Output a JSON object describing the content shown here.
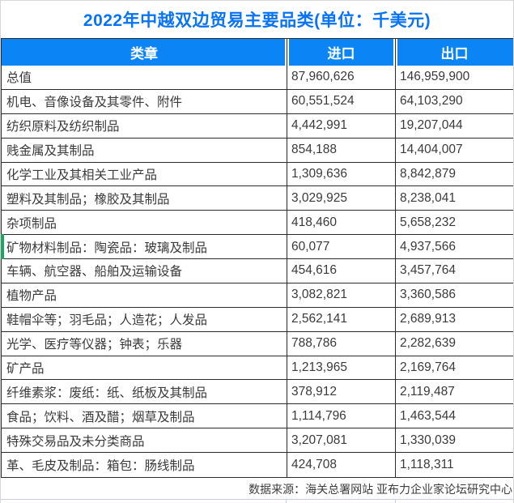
{
  "title": "2022年中越双边贸易主要品类(单位：千美元)",
  "footer": {
    "source": "数据来源：海关总署网站 亚布力企业家论坛研究中心"
  },
  "colors": {
    "accent_blue": "#0b84f5",
    "title_blue": "#0973f5",
    "header_text": "#ffffff",
    "border_dark": "#2b2b2b",
    "body_text": "#3a3a3a",
    "green_marker": "#21a366",
    "faint_line": "#c4cddc"
  },
  "chart_data": {
    "type": "table",
    "title": "2022年中越双边贸易主要品类(单位：千美元)",
    "unit": "千美元",
    "columns": [
      "类章",
      "进口",
      "出口"
    ],
    "rows": [
      {
        "category": "总值",
        "import_value": "87,960,626",
        "export_value": "146,959,900"
      },
      {
        "category": "机电、音像设备及其零件、附件",
        "import_value": "60,551,524",
        "export_value": "64,103,290"
      },
      {
        "category": "纺织原料及纺织制品",
        "import_value": "4,442,991",
        "export_value": "19,207,044"
      },
      {
        "category": "贱金属及其制品",
        "import_value": "854,188",
        "export_value": "14,404,007"
      },
      {
        "category": "化学工业及其相关工业产品",
        "import_value": "1,309,636",
        "export_value": "8,842,879"
      },
      {
        "category": "塑料及其制品；橡胶及其制品",
        "import_value": "3,029,925",
        "export_value": "8,238,041"
      },
      {
        "category": "杂项制品",
        "import_value": "418,460",
        "export_value": "5,658,232"
      },
      {
        "category": "矿物材料制品：陶瓷品：玻璃及制品",
        "import_value": "60,077",
        "export_value": "4,937,566"
      },
      {
        "category": "车辆、航空器、船舶及运输设备",
        "import_value": "454,616",
        "export_value": "3,457,764"
      },
      {
        "category": "植物产品",
        "import_value": "3,082,821",
        "export_value": "3,360,586"
      },
      {
        "category": "鞋帽伞等；羽毛品；人造花；人发品",
        "import_value": "2,562,141",
        "export_value": "2,689,913"
      },
      {
        "category": "光学、医疗等仪器；钟表；乐器",
        "import_value": "788,786",
        "export_value": "2,282,639"
      },
      {
        "category": "矿产品",
        "import_value": "1,213,965",
        "export_value": "2,169,764"
      },
      {
        "category": "纤维素浆：废纸：纸、纸板及其制品",
        "import_value": "378,912",
        "export_value": "2,119,487"
      },
      {
        "category": "食品；饮料、酒及醋；烟草及制品",
        "import_value": "1,114,796",
        "export_value": "1,463,544"
      },
      {
        "category": "特殊交易品及未分类商品",
        "import_value": "3,207,081",
        "export_value": "1,330,039"
      },
      {
        "category": "革、毛皮及制品：箱包：肠线制品",
        "import_value": "424,708",
        "export_value": "1,118,311"
      }
    ],
    "green_marker_row_index": 7,
    "source_note": "数据来源：海关总署网站 亚布力企业家论坛研究中心"
  }
}
